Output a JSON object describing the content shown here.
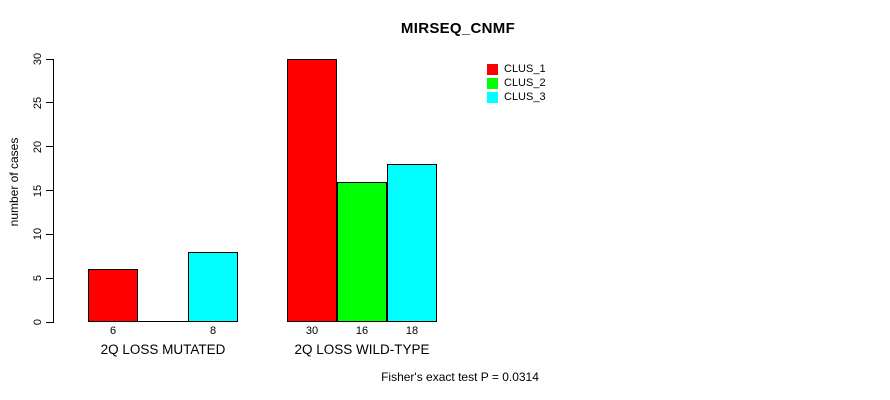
{
  "chart_data": {
    "type": "bar",
    "title": "MIRSEQ_CNMF",
    "ylabel": "number of cases",
    "xlabel": "",
    "ylim": [
      0,
      30
    ],
    "yticks": [
      0,
      5,
      10,
      15,
      20,
      25,
      30
    ],
    "grid": false,
    "legend_position": "top-right",
    "groups": [
      "2Q LOSS MUTATED",
      "2Q LOSS WILD-TYPE"
    ],
    "series": [
      {
        "name": "CLUS_1",
        "color": "#ff0000",
        "values": [
          6,
          30
        ]
      },
      {
        "name": "CLUS_2",
        "color": "#00ff00",
        "values": [
          0,
          16
        ]
      },
      {
        "name": "CLUS_3",
        "color": "#00ffff",
        "values": [
          8,
          18
        ]
      }
    ],
    "bar_labels": [
      [
        "6",
        "",
        "8"
      ],
      [
        "30",
        "16",
        "18"
      ]
    ],
    "annotation": "Fisher's exact test P = 0.0314",
    "colors": {
      "background": "#ffffff",
      "axis": "#000000",
      "text": "#000000"
    }
  }
}
